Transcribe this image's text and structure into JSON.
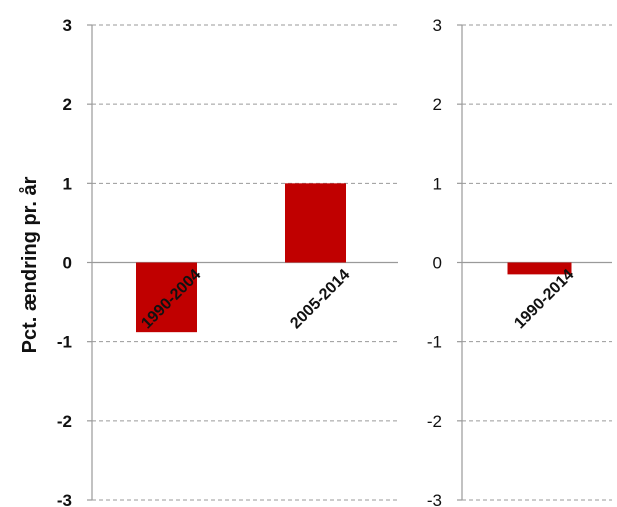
{
  "chart_data": [
    {
      "type": "bar",
      "ylabel": "Pct. ændring pr. år",
      "ylim": [
        -3,
        3
      ],
      "yticks": [
        "3",
        "2",
        "1",
        "0",
        "-1",
        "-2",
        "-3"
      ],
      "categories": [
        "1990-2004",
        "2005-2014"
      ],
      "values": [
        -0.88,
        1.0
      ],
      "grid": true,
      "bar_color": "#C00000"
    },
    {
      "type": "bar",
      "ylim": [
        -3,
        3
      ],
      "yticks": [
        "3",
        "2",
        "1",
        "0",
        "-1",
        "-2",
        "-3"
      ],
      "categories": [
        "1990-2014"
      ],
      "values": [
        -0.15
      ],
      "grid": true,
      "bar_color": "#C00000"
    }
  ]
}
